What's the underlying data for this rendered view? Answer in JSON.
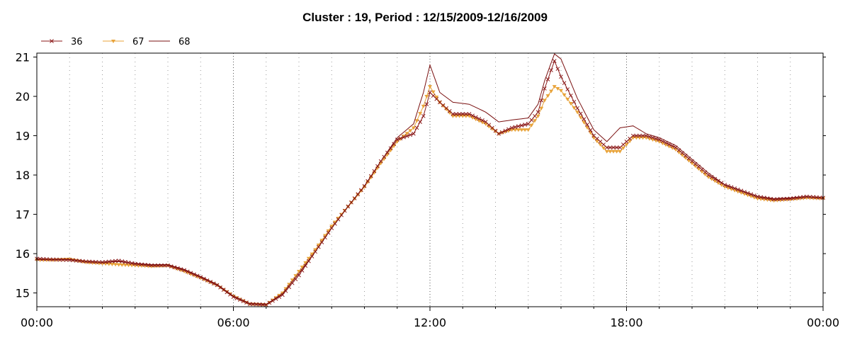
{
  "chart_data": {
    "type": "line",
    "title": "Cluster : 19, Period : 12/15/2009-12/16/2009",
    "xlabel": "",
    "ylabel": "",
    "x_tick_labels": [
      "00:00",
      "06:00",
      "12:00",
      "18:00",
      "00:00"
    ],
    "x_tick_hours": [
      0,
      6,
      12,
      18,
      24
    ],
    "xlim_hours": [
      0,
      24
    ],
    "ylim": [
      14.65,
      21.1
    ],
    "y_ticks": [
      15,
      16,
      17,
      18,
      19,
      20,
      21
    ],
    "grid": "dotted vertical lines",
    "legend_position": "top-left",
    "series": [
      {
        "name": "36",
        "color": "#8b1a1a",
        "marker": "x",
        "points": [
          [
            0,
            15.87
          ],
          [
            0.5,
            15.85
          ],
          [
            1,
            15.84
          ],
          [
            1.5,
            15.8
          ],
          [
            2,
            15.78
          ],
          [
            2.5,
            15.82
          ],
          [
            3,
            15.74
          ],
          [
            3.5,
            15.7
          ],
          [
            4,
            15.7
          ],
          [
            4.5,
            15.58
          ],
          [
            5,
            15.4
          ],
          [
            5.5,
            15.2
          ],
          [
            6,
            14.9
          ],
          [
            6.5,
            14.72
          ],
          [
            7,
            14.7
          ],
          [
            7.5,
            14.95
          ],
          [
            8,
            15.45
          ],
          [
            8.5,
            16.05
          ],
          [
            9,
            16.65
          ],
          [
            9.5,
            17.2
          ],
          [
            10,
            17.72
          ],
          [
            10.5,
            18.35
          ],
          [
            11,
            18.9
          ],
          [
            11.5,
            19.05
          ],
          [
            11.8,
            19.5
          ],
          [
            12,
            20.1
          ],
          [
            12.3,
            19.85
          ],
          [
            12.7,
            19.55
          ],
          [
            13.2,
            19.55
          ],
          [
            13.7,
            19.35
          ],
          [
            14.1,
            19.05
          ],
          [
            14.5,
            19.2
          ],
          [
            15,
            19.3
          ],
          [
            15.3,
            19.6
          ],
          [
            15.5,
            20.2
          ],
          [
            15.8,
            20.9
          ],
          [
            16,
            20.5
          ],
          [
            16.5,
            19.7
          ],
          [
            17,
            19.0
          ],
          [
            17.4,
            18.7
          ],
          [
            17.8,
            18.7
          ],
          [
            18.2,
            19.0
          ],
          [
            18.6,
            19.0
          ],
          [
            19,
            18.9
          ],
          [
            19.5,
            18.7
          ],
          [
            20,
            18.35
          ],
          [
            20.5,
            18.0
          ],
          [
            21,
            17.75
          ],
          [
            21.5,
            17.6
          ],
          [
            22,
            17.45
          ],
          [
            22.5,
            17.38
          ],
          [
            23,
            17.4
          ],
          [
            23.5,
            17.45
          ],
          [
            24,
            17.42
          ]
        ]
      },
      {
        "name": "67",
        "color": "#e8a33a",
        "marker": "triangle-down",
        "points": [
          [
            0,
            15.84
          ],
          [
            0.5,
            15.84
          ],
          [
            1,
            15.86
          ],
          [
            1.5,
            15.78
          ],
          [
            2,
            15.75
          ],
          [
            2.5,
            15.72
          ],
          [
            3,
            15.7
          ],
          [
            3.5,
            15.68
          ],
          [
            4,
            15.7
          ],
          [
            4.5,
            15.55
          ],
          [
            5,
            15.38
          ],
          [
            5.5,
            15.2
          ],
          [
            6,
            14.92
          ],
          [
            6.5,
            14.72
          ],
          [
            7,
            14.7
          ],
          [
            7.5,
            15.0
          ],
          [
            8,
            15.55
          ],
          [
            8.5,
            16.1
          ],
          [
            9,
            16.7
          ],
          [
            9.5,
            17.2
          ],
          [
            10,
            17.7
          ],
          [
            10.5,
            18.3
          ],
          [
            11,
            18.85
          ],
          [
            11.5,
            19.2
          ],
          [
            11.8,
            19.75
          ],
          [
            12,
            20.25
          ],
          [
            12.3,
            19.85
          ],
          [
            12.7,
            19.5
          ],
          [
            13.2,
            19.5
          ],
          [
            13.7,
            19.3
          ],
          [
            14.1,
            19.05
          ],
          [
            14.5,
            19.15
          ],
          [
            15,
            19.15
          ],
          [
            15.3,
            19.5
          ],
          [
            15.5,
            19.9
          ],
          [
            15.8,
            20.25
          ],
          [
            16,
            20.15
          ],
          [
            16.5,
            19.6
          ],
          [
            17,
            18.95
          ],
          [
            17.4,
            18.6
          ],
          [
            17.8,
            18.6
          ],
          [
            18.2,
            18.95
          ],
          [
            18.6,
            18.95
          ],
          [
            19,
            18.85
          ],
          [
            19.5,
            18.65
          ],
          [
            20,
            18.3
          ],
          [
            20.5,
            17.95
          ],
          [
            21,
            17.7
          ],
          [
            21.5,
            17.55
          ],
          [
            22,
            17.4
          ],
          [
            22.5,
            17.35
          ],
          [
            23,
            17.38
          ],
          [
            23.5,
            17.42
          ],
          [
            24,
            17.4
          ]
        ]
      },
      {
        "name": "68",
        "color": "#7a1010",
        "marker": "none",
        "points": [
          [
            0,
            15.86
          ],
          [
            0.5,
            15.85
          ],
          [
            1,
            15.85
          ],
          [
            1.5,
            15.8
          ],
          [
            2,
            15.78
          ],
          [
            2.5,
            15.8
          ],
          [
            3,
            15.75
          ],
          [
            3.5,
            15.72
          ],
          [
            4,
            15.72
          ],
          [
            4.5,
            15.6
          ],
          [
            5,
            15.42
          ],
          [
            5.5,
            15.22
          ],
          [
            6,
            14.92
          ],
          [
            6.5,
            14.73
          ],
          [
            7,
            14.71
          ],
          [
            7.5,
            14.98
          ],
          [
            8,
            15.5
          ],
          [
            8.5,
            16.05
          ],
          [
            9,
            16.65
          ],
          [
            9.5,
            17.2
          ],
          [
            10,
            17.72
          ],
          [
            10.5,
            18.35
          ],
          [
            11,
            18.95
          ],
          [
            11.5,
            19.3
          ],
          [
            11.8,
            20.1
          ],
          [
            12,
            20.8
          ],
          [
            12.3,
            20.1
          ],
          [
            12.7,
            19.85
          ],
          [
            13.2,
            19.8
          ],
          [
            13.7,
            19.6
          ],
          [
            14.1,
            19.35
          ],
          [
            14.5,
            19.4
          ],
          [
            15,
            19.45
          ],
          [
            15.3,
            19.8
          ],
          [
            15.5,
            20.4
          ],
          [
            15.8,
            21.08
          ],
          [
            16,
            20.95
          ],
          [
            16.5,
            19.95
          ],
          [
            17,
            19.15
          ],
          [
            17.4,
            18.85
          ],
          [
            17.8,
            19.2
          ],
          [
            18.2,
            19.25
          ],
          [
            18.6,
            19.05
          ],
          [
            19,
            18.95
          ],
          [
            19.5,
            18.75
          ],
          [
            20,
            18.4
          ],
          [
            20.5,
            18.05
          ],
          [
            21,
            17.75
          ],
          [
            21.5,
            17.6
          ],
          [
            22,
            17.45
          ],
          [
            22.5,
            17.4
          ],
          [
            23,
            17.42
          ],
          [
            23.5,
            17.45
          ],
          [
            24,
            17.42
          ]
        ]
      }
    ]
  }
}
